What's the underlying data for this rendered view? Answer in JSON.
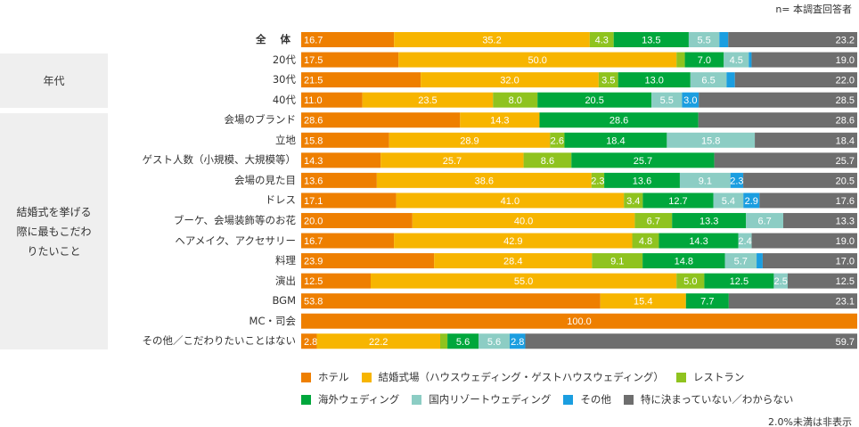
{
  "sample_note": "n= 本調査回答者",
  "footnote": "2.0%未満は非表示",
  "groups": [
    {
      "label": "年代"
    },
    {
      "label": "結婚式を挙げる\n際に最もこだわ\nりたいこと"
    }
  ],
  "chart_data": {
    "type": "bar",
    "orientation": "horizontal",
    "stacked": true,
    "xlim": [
      0,
      100
    ],
    "label_threshold": 2.0,
    "legend_position": "bottom",
    "categories": [
      "全 体",
      "20代",
      "30代",
      "40代",
      "会場のブランド",
      "立地",
      "ゲスト人数（小規模、大規模等）",
      "会場の見た目",
      "ドレス",
      "ブーケ、会場装飾等のお花",
      "ヘアメイク、アクセサリー",
      "料理",
      "演出",
      "BGM",
      "MC・司会",
      "その他／こだわりたいことはない"
    ],
    "series": [
      {
        "name": "ホテル",
        "color": "#ee7f00",
        "values": [
          16.7,
          17.5,
          21.5,
          11.0,
          28.6,
          15.8,
          14.3,
          13.6,
          17.1,
          20.0,
          16.7,
          23.9,
          12.5,
          53.8,
          100.0,
          2.8
        ]
      },
      {
        "name": "結婚式場（ハウスウェディング・ゲストハウスウェディング）",
        "color": "#f7b500",
        "values": [
          35.2,
          50.0,
          32.0,
          23.5,
          14.3,
          28.9,
          25.7,
          38.6,
          41.0,
          40.0,
          42.9,
          28.4,
          55.0,
          15.4,
          0,
          22.2
        ]
      },
      {
        "name": "レストラン",
        "color": "#8fc31f",
        "values": [
          4.3,
          1.5,
          3.5,
          8.0,
          0,
          2.6,
          8.6,
          2.3,
          3.4,
          6.7,
          4.8,
          9.1,
          5.0,
          0,
          0,
          1.3
        ]
      },
      {
        "name": "海外ウェディング",
        "color": "#00a73c",
        "values": [
          13.5,
          7.0,
          13.0,
          20.5,
          28.6,
          18.4,
          25.7,
          13.6,
          12.7,
          13.3,
          14.3,
          14.8,
          12.5,
          7.7,
          0,
          5.6
        ]
      },
      {
        "name": "国内リゾートウェディング",
        "color": "#8ccdc4",
        "values": [
          5.5,
          4.5,
          6.5,
          5.5,
          0,
          15.8,
          0,
          9.1,
          5.4,
          6.7,
          2.4,
          5.7,
          2.5,
          0,
          0,
          5.6
        ]
      },
      {
        "name": "その他",
        "color": "#1b9ee0",
        "values": [
          1.6,
          0.5,
          1.5,
          3.0,
          0,
          0,
          0,
          2.3,
          2.9,
          0,
          0,
          1.1,
          0,
          0,
          0,
          2.8
        ]
      },
      {
        "name": "特に決まっていない／わからない",
        "color": "#6e6e6e",
        "values": [
          23.2,
          19.0,
          22.0,
          28.5,
          28.6,
          18.4,
          25.7,
          20.5,
          17.6,
          13.3,
          19.0,
          17.0,
          12.5,
          23.1,
          0,
          59.7
        ]
      }
    ]
  }
}
